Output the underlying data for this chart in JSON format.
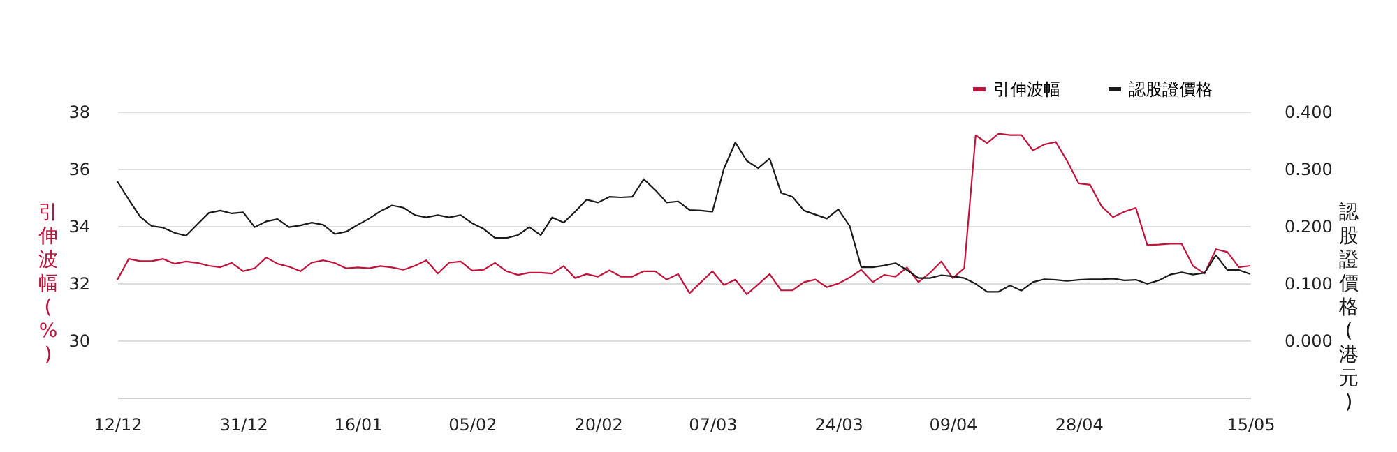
{
  "chart_data": {
    "type": "line",
    "categories": [
      "12/12",
      null,
      null,
      null,
      null,
      null,
      null,
      null,
      null,
      null,
      null,
      "31/12",
      null,
      null,
      null,
      null,
      null,
      null,
      null,
      null,
      null,
      "16/01",
      null,
      null,
      null,
      null,
      null,
      null,
      null,
      null,
      null,
      "05/02",
      null,
      null,
      null,
      null,
      null,
      null,
      null,
      null,
      null,
      null,
      "20/02",
      null,
      null,
      null,
      null,
      null,
      null,
      null,
      null,
      null,
      "07/03",
      null,
      null,
      null,
      null,
      null,
      null,
      null,
      null,
      null,
      null,
      "24/03",
      null,
      null,
      null,
      null,
      null,
      null,
      null,
      null,
      null,
      "09/04",
      null,
      null,
      null,
      null,
      null,
      null,
      null,
      null,
      null,
      null,
      "28/04",
      null,
      null,
      null,
      null,
      null,
      null,
      null,
      null,
      null,
      null,
      null,
      null,
      null,
      null,
      "15/05"
    ],
    "series": [
      {
        "name": "引伸波幅",
        "color": "#c0143c",
        "axis": "y",
        "values": [
          32.12,
          32.85,
          32.77,
          32.77,
          32.85,
          32.68,
          32.76,
          32.71,
          32.61,
          32.56,
          32.71,
          32.42,
          32.52,
          32.9,
          32.68,
          32.58,
          32.42,
          32.72,
          32.8,
          32.71,
          32.52,
          32.55,
          32.52,
          32.6,
          32.55,
          32.47,
          32.61,
          32.8,
          32.34,
          32.72,
          32.76,
          32.44,
          32.47,
          32.71,
          32.42,
          32.29,
          32.37,
          32.37,
          32.34,
          32.6,
          32.18,
          32.32,
          32.23,
          32.45,
          32.23,
          32.23,
          32.42,
          32.42,
          32.13,
          32.32,
          31.65,
          32.04,
          32.42,
          31.94,
          32.13,
          31.61,
          31.96,
          32.32,
          31.75,
          31.75,
          32.04,
          32.13,
          31.86,
          31.99,
          32.2,
          32.47,
          32.04,
          32.29,
          32.23,
          32.55,
          32.04,
          32.36,
          32.76,
          32.18,
          32.52,
          37.17,
          36.9,
          37.23,
          37.18,
          37.18,
          36.64,
          36.85,
          36.94,
          36.27,
          35.49,
          35.44,
          34.69,
          34.31,
          34.5,
          34.63,
          33.33,
          33.35,
          33.38,
          33.38,
          32.6,
          32.34,
          33.19,
          33.09,
          32.56,
          32.61
        ]
      },
      {
        "name": "認股證價格",
        "color": "#1a1a1a",
        "axis": "y2",
        "values": [
          0.278,
          0.246,
          0.216,
          0.2,
          0.197,
          0.188,
          0.183,
          0.203,
          0.223,
          0.227,
          0.222,
          0.224,
          0.198,
          0.208,
          0.212,
          0.198,
          0.201,
          0.206,
          0.202,
          0.186,
          0.19,
          0.202,
          0.213,
          0.226,
          0.236,
          0.232,
          0.219,
          0.215,
          0.219,
          0.215,
          0.219,
          0.205,
          0.195,
          0.179,
          0.179,
          0.184,
          0.198,
          0.184,
          0.215,
          0.206,
          0.225,
          0.246,
          0.241,
          0.251,
          0.25,
          0.251,
          0.282,
          0.263,
          0.241,
          0.243,
          0.228,
          0.227,
          0.225,
          0.3,
          0.346,
          0.314,
          0.301,
          0.318,
          0.258,
          0.251,
          0.227,
          0.22,
          0.213,
          0.229,
          0.2,
          0.128,
          0.128,
          0.131,
          0.135,
          0.123,
          0.109,
          0.109,
          0.114,
          0.112,
          0.109,
          0.099,
          0.085,
          0.085,
          0.096,
          0.087,
          0.102,
          0.107,
          0.106,
          0.104,
          0.106,
          0.107,
          0.107,
          0.108,
          0.105,
          0.106,
          0.099,
          0.105,
          0.115,
          0.119,
          0.115,
          0.118,
          0.149,
          0.123,
          0.123,
          0.116
        ]
      }
    ],
    "ylabel": "引伸波幅(%)",
    "y2label": "認股證價格(港元)",
    "ylim": [
      28,
      38
    ],
    "yticks": [
      30,
      32,
      34,
      36,
      38
    ],
    "y2lim": [
      -0.1,
      0.4
    ],
    "y2ticks": [
      {
        "value": 0.0,
        "label": "0.000"
      },
      {
        "value": 0.1,
        "label": "0.100"
      },
      {
        "value": 0.2,
        "label": "0.200"
      },
      {
        "value": 0.3,
        "label": "0.300"
      },
      {
        "value": 0.4,
        "label": "0.400"
      }
    ],
    "grid": "y",
    "legend": "top right",
    "line_style": "solid"
  }
}
